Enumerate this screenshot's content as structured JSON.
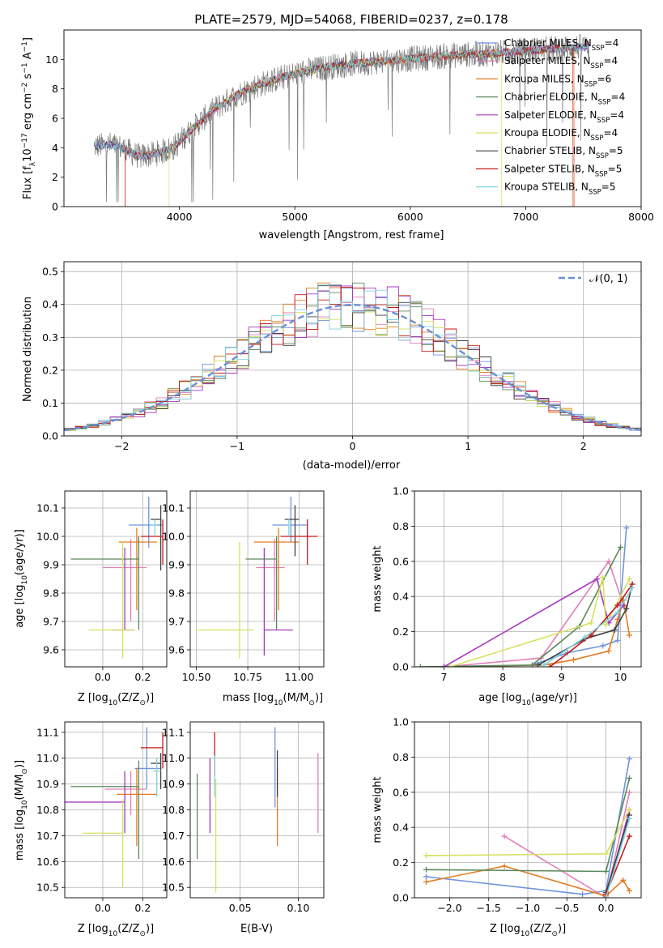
{
  "figure_title": "PLATE=2579, MJD=54068, FIBERID=0237, z=0.178",
  "models": [
    {
      "label": "Chabrier MILES",
      "nssp": "4",
      "color": "#6f94dc"
    },
    {
      "label": "Salpeter MILES",
      "nssp": "4",
      "color": "#e07fb8"
    },
    {
      "label": "Kroupa MILES",
      "nssp": "6",
      "color": "#e27c22"
    },
    {
      "label": "Chabrier ELODIE",
      "nssp": "4",
      "color": "#5a8a5a"
    },
    {
      "label": "Salpeter ELODIE",
      "nssp": "4",
      "color": "#a838c0"
    },
    {
      "label": "Kroupa ELODIE",
      "nssp": "4",
      "color": "#d8e060"
    },
    {
      "label": "Chabrier STELIB",
      "nssp": "5",
      "color": "#404040"
    },
    {
      "label": "Salpeter STELIB",
      "nssp": "5",
      "color": "#c81818"
    },
    {
      "label": "Kroupa STELIB",
      "nssp": "5",
      "color": "#7fd4dc"
    }
  ],
  "chart_data": [
    {
      "id": "spectrum",
      "type": "line",
      "xlabel": "wavelength [Angstrom, rest frame]",
      "ylabel": "Flux [fλ10^-17 erg cm^-2 s^-1 A^-1]",
      "xlim": [
        3000,
        8000
      ],
      "ylim": [
        0,
        12
      ],
      "xticks": [
        4000,
        5000,
        6000,
        7000,
        8000
      ],
      "yticks": [
        0,
        2,
        4,
        6,
        8,
        10
      ],
      "grid": false,
      "legend_position": "right",
      "continuum": {
        "wavelength": [
          3260,
          3400,
          3500,
          3650,
          3800,
          3950,
          4100,
          4300,
          4500,
          4700,
          4900,
          5100,
          5300,
          5500,
          5800,
          6100,
          6400,
          6700,
          7000,
          7200,
          7400,
          7600
        ],
        "flux": [
          4.1,
          4.2,
          4.0,
          3.4,
          3.6,
          4.0,
          5.2,
          6.6,
          7.6,
          8.3,
          8.8,
          9.2,
          9.5,
          9.7,
          9.9,
          10.1,
          10.3,
          10.4,
          10.6,
          10.7,
          10.8,
          10.9
        ]
      },
      "model_cutoffs": {
        "Kroupa MILES": [
          3530,
          7420
        ],
        "Salpeter STELIB": [
          3530,
          7410
        ],
        "Kroupa ELODIE": [
          3910,
          6790
        ]
      }
    },
    {
      "id": "residuals",
      "type": "bar",
      "xlabel": "(data-model)/error",
      "ylabel": "Normed distribution",
      "xlim": [
        -2.5,
        2.5
      ],
      "ylim": [
        0,
        0.53
      ],
      "xticks": [
        -2,
        -1,
        0,
        1,
        2
      ],
      "yticks": [
        0.0,
        0.1,
        0.2,
        0.3,
        0.4,
        0.5
      ],
      "grid": true,
      "legend_position": "top-right",
      "legend_label": "𝒩(0, 1)",
      "bin_edges_start": -2.5,
      "bin_width": 0.1,
      "bin_count": 50
    },
    {
      "id": "age_vs_Z",
      "type": "scatter",
      "xlabel": "Z [log10(Z/Z⊙)]",
      "ylabel": "age  [log10(age/yr)]",
      "xlim": [
        -0.19,
        0.32
      ],
      "ylim": [
        9.54,
        10.16
      ],
      "xticks": [
        0.0,
        0.2
      ],
      "yticks": [
        9.6,
        9.7,
        9.8,
        9.9,
        10.0,
        10.1
      ],
      "points": [
        {
          "model": "Chabrier MILES",
          "x": 0.23,
          "y": 10.04,
          "xerr": [
            0.1,
            0.07
          ],
          "yerr": [
            0.08,
            0.1
          ]
        },
        {
          "model": "Salpeter MILES",
          "x": 0.14,
          "y": 9.89,
          "xerr": [
            0.14,
            0.08
          ],
          "yerr": [
            0.19,
            0.1
          ]
        },
        {
          "model": "Kroupa MILES",
          "x": 0.17,
          "y": 9.98,
          "xerr": [
            0.09,
            0.1
          ],
          "yerr": [
            0.24,
            0.05
          ]
        },
        {
          "model": "Chabrier ELODIE",
          "x": 0.18,
          "y": 9.92,
          "xerr": [
            0.34,
            0.0
          ],
          "yerr": [
            0.25,
            0.08
          ]
        },
        {
          "model": "Salpeter ELODIE",
          "x": 0.11,
          "y": 9.67,
          "xerr": [
            0.06,
            0.05
          ],
          "yerr": [
            0.0,
            0.29
          ]
        },
        {
          "model": "Kroupa ELODIE",
          "x": 0.1,
          "y": 9.67,
          "xerr": [
            0.17,
            0.06
          ],
          "yerr": [
            0.1,
            0.31
          ]
        },
        {
          "model": "Chabrier STELIB",
          "x": 0.29,
          "y": 10.06,
          "xerr": [
            0.05,
            0.0
          ],
          "yerr": [
            0.18,
            0.05
          ]
        },
        {
          "model": "Salpeter STELIB",
          "x": 0.3,
          "y": 10.0,
          "xerr": [
            0.11,
            0.0
          ],
          "yerr": [
            0.1,
            0.06
          ]
        },
        {
          "model": "Kroupa STELIB",
          "x": 0.26,
          "y": 10.04,
          "xerr": [
            0.02,
            0.01
          ],
          "yerr": [
            0.04,
            0.02
          ]
        }
      ]
    },
    {
      "id": "age_vs_mass",
      "type": "scatter",
      "xlabel": "mass [log10(M/M⊙)]",
      "ylabel": "",
      "xlim": [
        10.47,
        11.12
      ],
      "ylim": [
        9.54,
        10.16
      ],
      "xticks": [
        10.5,
        10.75,
        11.0
      ],
      "yticks": [
        9.6,
        9.7,
        9.8,
        9.9,
        10.0,
        10.1
      ],
      "points": [
        {
          "model": "Chabrier MILES",
          "x": 10.96,
          "y": 10.04,
          "xerr": [
            0.09,
            0.08
          ],
          "yerr": [
            0.06,
            0.1
          ]
        },
        {
          "model": "Salpeter MILES",
          "x": 10.88,
          "y": 9.89,
          "xerr": [
            0.09,
            0.05
          ],
          "yerr": [
            0.19,
            0.1
          ]
        },
        {
          "model": "Kroupa MILES",
          "x": 10.9,
          "y": 9.98,
          "xerr": [
            0.12,
            0.1
          ],
          "yerr": [
            0.24,
            0.05
          ]
        },
        {
          "model": "Chabrier ELODIE",
          "x": 10.89,
          "y": 9.92,
          "xerr": [
            0.15,
            0.0
          ],
          "yerr": [
            0.25,
            0.08
          ]
        },
        {
          "model": "Salpeter ELODIE",
          "x": 10.83,
          "y": 9.67,
          "xerr": [
            0.0,
            0.14
          ],
          "yerr": [
            0.09,
            0.29
          ]
        },
        {
          "model": "Kroupa ELODIE",
          "x": 10.71,
          "y": 9.67,
          "xerr": [
            0.21,
            0.07
          ],
          "yerr": [
            0.1,
            0.31
          ]
        },
        {
          "model": "Chabrier STELIB",
          "x": 10.98,
          "y": 10.06,
          "xerr": [
            0.05,
            0.02
          ],
          "yerr": [
            0.13,
            0.05
          ]
        },
        {
          "model": "Salpeter STELIB",
          "x": 11.04,
          "y": 10.0,
          "xerr": [
            0.13,
            0.05
          ],
          "yerr": [
            0.1,
            0.06
          ]
        },
        {
          "model": "Kroupa STELIB",
          "x": 10.95,
          "y": 10.04,
          "xerr": [
            0.01,
            0.01
          ],
          "yerr": [
            0.04,
            0.02
          ]
        }
      ]
    },
    {
      "id": "mass_vs_Z",
      "type": "scatter",
      "xlabel": "Z [log10(Z/Z⊙)]",
      "ylabel": "mass [log10(M/M⊙)]",
      "xlim": [
        -0.19,
        0.32
      ],
      "ylim": [
        10.46,
        11.14
      ],
      "xticks": [
        0.0,
        0.2
      ],
      "yticks": [
        10.5,
        10.6,
        10.7,
        10.8,
        10.9,
        11.0,
        11.1
      ],
      "points": [
        {
          "model": "Chabrier MILES",
          "x": 0.22,
          "y": 10.96,
          "xerr": [
            0.06,
            0.07
          ],
          "yerr": [
            0.08,
            0.16
          ]
        },
        {
          "model": "Salpeter MILES",
          "x": 0.14,
          "y": 10.88,
          "xerr": [
            0.13,
            0.08
          ],
          "yerr": [
            0.1,
            0.07
          ]
        },
        {
          "model": "Kroupa MILES",
          "x": 0.17,
          "y": 10.86,
          "xerr": [
            0.1,
            0.1
          ],
          "yerr": [
            0.2,
            0.1
          ]
        },
        {
          "model": "Chabrier ELODIE",
          "x": 0.18,
          "y": 10.89,
          "xerr": [
            0.34,
            0.0
          ],
          "yerr": [
            0.28,
            0.1
          ]
        },
        {
          "model": "Salpeter ELODIE",
          "x": 0.11,
          "y": 10.83,
          "xerr": [
            0.3,
            0.0
          ],
          "yerr": [
            0.12,
            0.12
          ]
        },
        {
          "model": "Kroupa ELODIE",
          "x": 0.1,
          "y": 10.71,
          "xerr": [
            0.2,
            0.0
          ],
          "yerr": [
            0.21,
            0.13
          ]
        },
        {
          "model": "Chabrier STELIB",
          "x": 0.29,
          "y": 10.98,
          "xerr": [
            0.05,
            0.0
          ],
          "yerr": [
            0.1,
            0.04
          ]
        },
        {
          "model": "Salpeter STELIB",
          "x": 0.3,
          "y": 11.04,
          "xerr": [
            0.11,
            0.0
          ],
          "yerr": [
            0.08,
            0.06
          ]
        },
        {
          "model": "Kroupa STELIB",
          "x": 0.27,
          "y": 10.95,
          "xerr": [
            0.02,
            0.02
          ],
          "yerr": [
            0.1,
            0.05
          ]
        }
      ]
    },
    {
      "id": "mass_vs_EBV",
      "type": "scatter",
      "xlabel": "E(B-V)",
      "ylabel": "",
      "xlim": [
        0.007,
        0.122
      ],
      "ylim": [
        10.46,
        11.14
      ],
      "xticks": [
        0.05,
        0.1
      ],
      "yticks": [
        10.5,
        10.6,
        10.7,
        10.8,
        10.9,
        11.0,
        11.1
      ],
      "points": [
        {
          "model": "Chabrier MILES",
          "x": 0.08,
          "y": 10.96,
          "yerr": [
            0.15,
            0.16
          ]
        },
        {
          "model": "Salpeter MILES",
          "x": 0.117,
          "y": 10.88,
          "yerr": [
            0.17,
            0.14
          ]
        },
        {
          "model": "Kroupa MILES",
          "x": 0.082,
          "y": 10.86,
          "yerr": [
            0.2,
            0.1
          ]
        },
        {
          "model": "Chabrier ELODIE",
          "x": 0.013,
          "y": 10.89,
          "yerr": [
            0.28,
            0.05
          ]
        },
        {
          "model": "Salpeter ELODIE",
          "x": 0.024,
          "y": 10.83,
          "yerr": [
            0.12,
            0.17
          ]
        },
        {
          "model": "Kroupa ELODIE",
          "x": 0.029,
          "y": 10.71,
          "yerr": [
            0.23,
            0.21
          ]
        },
        {
          "model": "Chabrier STELIB",
          "x": 0.082,
          "y": 10.98,
          "yerr": [
            0.13,
            0.05
          ]
        },
        {
          "model": "Salpeter STELIB",
          "x": 0.028,
          "y": 11.04,
          "yerr": [
            0.11,
            0.06
          ]
        },
        {
          "model": "Kroupa STELIB",
          "x": 0.028,
          "y": 10.95,
          "yerr": [
            0.1,
            0.06
          ]
        }
      ]
    },
    {
      "id": "weight_vs_age",
      "type": "line",
      "xlabel": "age  [log10(age/yr)]",
      "ylabel": "mass weight",
      "xlim": [
        6.5,
        10.35
      ],
      "ylim": [
        0,
        1.0
      ],
      "xticks": [
        7,
        8,
        9,
        10
      ],
      "yticks": [
        0.0,
        0.2,
        0.4,
        0.6,
        0.8,
        1.0
      ],
      "series": [
        {
          "model": "Chabrier MILES",
          "x": [
            8.5,
            9.1,
            9.7,
            9.95,
            10.1
          ],
          "y": [
            0.01,
            0.08,
            0.12,
            0.15,
            0.79
          ]
        },
        {
          "model": "Salpeter MILES",
          "x": [
            7.0,
            8.65,
            9.8,
            10.05
          ],
          "y": [
            0.0,
            0.05,
            0.6,
            0.35
          ]
        },
        {
          "model": "Kroupa MILES",
          "x": [
            7.0,
            8.7,
            9.2,
            9.8,
            9.95,
            10.05,
            10.15
          ],
          "y": [
            0.0,
            0.01,
            0.04,
            0.09,
            0.27,
            0.38,
            0.18
          ]
        },
        {
          "model": "Chabrier ELODIE",
          "x": [
            6.6,
            8.5,
            9.3,
            10.0
          ],
          "y": [
            0.0,
            0.01,
            0.23,
            0.68
          ]
        },
        {
          "model": "Salpeter ELODIE",
          "x": [
            7.0,
            9.6,
            9.8,
            10.05
          ],
          "y": [
            0.0,
            0.5,
            0.25,
            0.35
          ]
        },
        {
          "model": "Kroupa ELODIE",
          "x": [
            7.1,
            9.5,
            9.7,
            9.75,
            10.15
          ],
          "y": [
            0.0,
            0.25,
            0.51,
            0.24,
            0.5
          ]
        },
        {
          "model": "Chabrier STELIB",
          "x": [
            8.6,
            9.4,
            9.9,
            10.1,
            10.2
          ],
          "y": [
            0.01,
            0.16,
            0.21,
            0.33,
            0.47
          ]
        },
        {
          "model": "Salpeter STELIB",
          "x": [
            8.8,
            9.5,
            9.95,
            10.2
          ],
          "y": [
            0.0,
            0.18,
            0.35,
            0.47
          ]
        },
        {
          "model": "Kroupa STELIB",
          "x": [
            8.7,
            9.4,
            9.95,
            10.2
          ],
          "y": [
            0.01,
            0.17,
            0.31,
            0.45
          ]
        }
      ]
    },
    {
      "id": "weight_vs_Z",
      "type": "line",
      "xlabel": "Z [log10(Z/Z⊙)]",
      "ylabel": "mass weight",
      "xlim": [
        -2.45,
        0.45
      ],
      "ylim": [
        0,
        1.0
      ],
      "xticks": [
        -2.0,
        -1.5,
        -1.0,
        -0.5,
        0.0
      ],
      "yticks": [
        0.0,
        0.2,
        0.4,
        0.6,
        0.8,
        1.0
      ],
      "series": [
        {
          "model": "Chabrier MILES",
          "x": [
            -2.3,
            -0.3,
            0.0,
            0.3
          ],
          "y": [
            0.12,
            0.02,
            0.04,
            0.79
          ]
        },
        {
          "model": "Salpeter MILES",
          "x": [
            -1.3,
            0.0,
            0.3
          ],
          "y": [
            0.35,
            0.0,
            0.6
          ]
        },
        {
          "model": "Kroupa MILES",
          "x": [
            -2.3,
            -1.3,
            0.0,
            0.22,
            0.3
          ],
          "y": [
            0.09,
            0.18,
            0.01,
            0.1,
            0.04
          ]
        },
        {
          "model": "Chabrier ELODIE",
          "x": [
            -2.3,
            0.0,
            0.3
          ],
          "y": [
            0.16,
            0.15,
            0.68
          ]
        },
        {
          "model": "Salpeter ELODIE",
          "x": [
            0.0,
            0.3
          ],
          "y": [
            0.0,
            0.5
          ]
        },
        {
          "model": "Kroupa ELODIE",
          "x": [
            -2.3,
            0.0,
            0.3
          ],
          "y": [
            0.24,
            0.25,
            0.5
          ]
        },
        {
          "model": "Chabrier STELIB",
          "x": [
            0.0,
            0.3
          ],
          "y": [
            0.03,
            0.47
          ]
        },
        {
          "model": "Salpeter STELIB",
          "x": [
            0.0,
            0.3
          ],
          "y": [
            0.02,
            0.35
          ]
        },
        {
          "model": "Kroupa STELIB",
          "x": [
            0.0,
            0.3
          ],
          "y": [
            0.0,
            0.45
          ]
        }
      ]
    }
  ]
}
